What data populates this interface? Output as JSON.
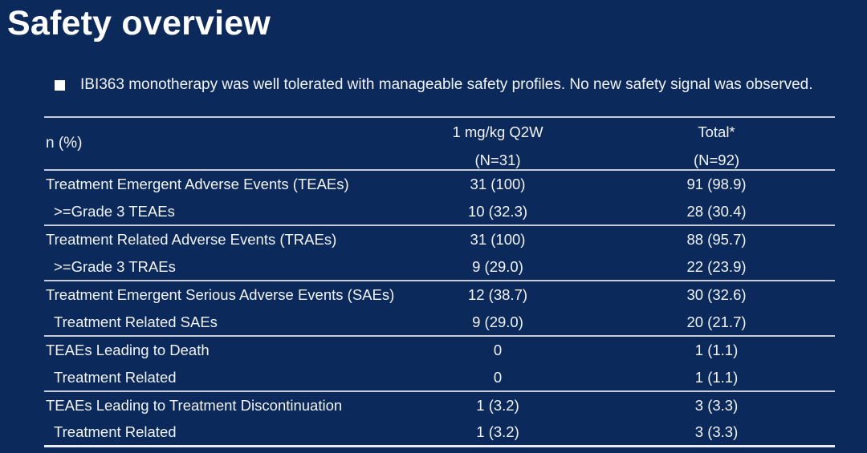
{
  "slide": {
    "title": "Safety overview",
    "bullet_text": "IBI363 monotherapy was well tolerated with manageable safety profiles. No new safety signal was observed."
  },
  "colors": {
    "background": "#0b2a5b",
    "text": "#f2f4f8",
    "table_line": "#c6cbd4"
  },
  "table": {
    "row_label_header": "n (%)",
    "columns": [
      {
        "title": "1 mg/kg Q2W",
        "n": "(N=31)"
      },
      {
        "title": "Total*",
        "n": "(N=92)"
      }
    ],
    "rows": [
      {
        "label": "Treatment Emergent Adverse Events (TEAEs)",
        "indent": false,
        "c1": "31 (100)",
        "c2": "91 (98.9)"
      },
      {
        "label": ">=Grade 3 TEAEs",
        "indent": true,
        "c1": "10 (32.3)",
        "c2": "28 (30.4)"
      },
      {
        "label": "Treatment Related Adverse Events (TRAEs)",
        "indent": false,
        "c1": "31 (100)",
        "c2": "88 (95.7)"
      },
      {
        "label": ">=Grade 3 TRAEs",
        "indent": true,
        "c1": "9 (29.0)",
        "c2": "22 (23.9)"
      },
      {
        "label": "Treatment Emergent Serious Adverse Events (SAEs)",
        "indent": false,
        "c1": "12 (38.7)",
        "c2": "30 (32.6)"
      },
      {
        "label": "Treatment Related SAEs",
        "indent": true,
        "c1": "9 (29.0)",
        "c2": "20 (21.7)"
      },
      {
        "label": "TEAEs Leading to Death",
        "indent": false,
        "c1": "0",
        "c2": "1 (1.1)"
      },
      {
        "label": "Treatment Related",
        "indent": true,
        "c1": "0",
        "c2": "1 (1.1)"
      },
      {
        "label": "TEAEs Leading to Treatment Discontinuation",
        "indent": false,
        "c1": "1 (3.2)",
        "c2": "3 (3.3)"
      },
      {
        "label": "Treatment Related",
        "indent": true,
        "c1": "1 (3.2)",
        "c2": "3 (3.3)"
      }
    ]
  }
}
